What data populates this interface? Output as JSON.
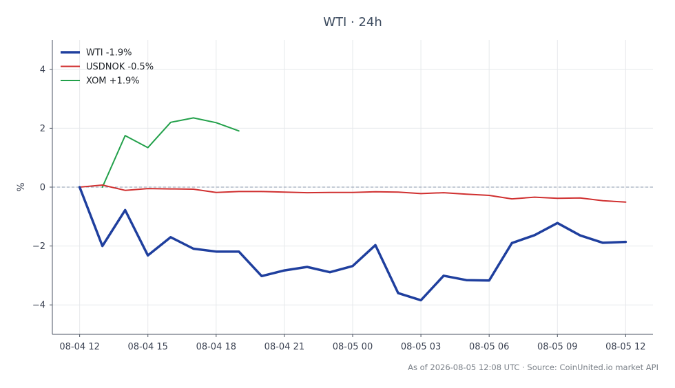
{
  "chart_data": {
    "type": "line",
    "title": "WTI · 24h",
    "ylabel": "%",
    "xlabel": "",
    "ylim": [
      -5,
      5
    ],
    "yticks": [
      -4,
      -2,
      0,
      2,
      4
    ],
    "ytick_labels": [
      "−4",
      "−2",
      "0",
      "2",
      "4"
    ],
    "xlim": [
      -1.2,
      25.2
    ],
    "xticks": [
      0,
      3,
      6,
      9,
      12,
      15,
      18,
      21,
      24
    ],
    "xtick_labels": [
      "08-04 12",
      "08-04 15",
      "08-04 18",
      "08-04 21",
      "08-05 00",
      "08-05 03",
      "08-05 06",
      "08-05 09",
      "08-05 12"
    ],
    "grid": true,
    "zero_line": true,
    "legend_position": "top-left",
    "series": [
      {
        "name": "WTI -1.9%",
        "color": "#1f3f9e",
        "x": [
          0,
          1,
          2,
          3,
          4,
          5,
          6,
          7,
          8,
          9,
          10,
          11,
          12,
          13,
          14,
          15,
          16,
          17,
          18,
          19,
          20,
          21,
          22,
          23,
          24
        ],
        "values": [
          0.0,
          -2.0,
          -0.78,
          -2.32,
          -1.7,
          -2.09,
          -2.19,
          -2.19,
          -3.02,
          -2.83,
          -2.71,
          -2.89,
          -2.68,
          -1.97,
          -3.6,
          -3.84,
          -3.01,
          -3.16,
          -3.17,
          -1.9,
          -1.63,
          -1.22,
          -1.64,
          -1.89,
          -1.86
        ]
      },
      {
        "name": "USDNOK -0.5%",
        "color": "#d03030",
        "x": [
          0,
          1,
          2,
          3,
          4,
          5,
          6,
          7,
          8,
          9,
          10,
          11,
          12,
          13,
          14,
          15,
          16,
          17,
          18,
          19,
          20,
          21,
          22,
          23,
          24
        ],
        "values": [
          0.0,
          0.07,
          -0.11,
          -0.05,
          -0.06,
          -0.07,
          -0.18,
          -0.15,
          -0.15,
          -0.17,
          -0.19,
          -0.18,
          -0.18,
          -0.16,
          -0.17,
          -0.22,
          -0.19,
          -0.24,
          -0.28,
          -0.4,
          -0.34,
          -0.38,
          -0.37,
          -0.46,
          -0.51
        ]
      },
      {
        "name": "XOM +1.9%",
        "color": "#22a04a",
        "x": [
          1,
          2,
          3,
          4,
          5,
          6,
          7
        ],
        "values": [
          0.0,
          1.75,
          1.34,
          2.2,
          2.35,
          2.19,
          1.91
        ]
      }
    ]
  },
  "footer": "As of 2026-08-05 12:08 UTC · Source: CoinUnited.io market API"
}
